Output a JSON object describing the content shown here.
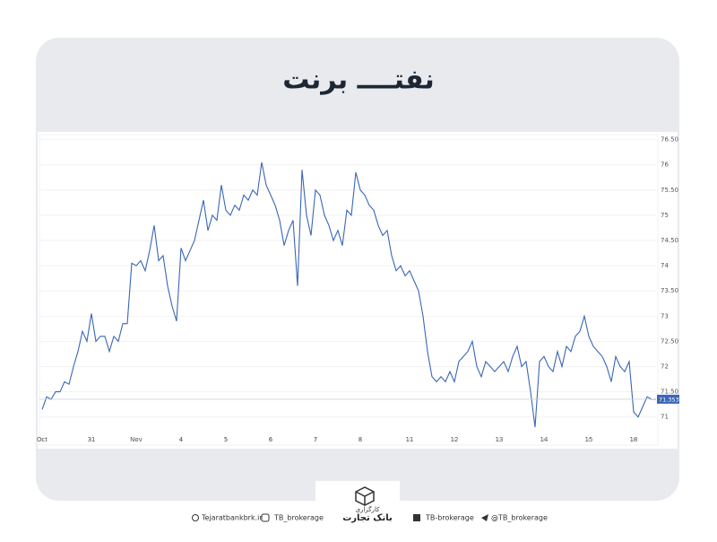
{
  "chart_data": {
    "type": "line",
    "title": "نفتــــ برنت",
    "series": [
      {
        "name": "Brent",
        "color": "#3a66b7",
        "values": [
          71.15,
          71.4,
          71.35,
          71.5,
          71.5,
          71.7,
          71.65,
          72.0,
          72.3,
          72.7,
          72.5,
          73.05,
          72.5,
          72.6,
          72.6,
          72.3,
          72.6,
          72.5,
          72.85,
          72.85,
          74.05,
          74.0,
          74.1,
          73.9,
          74.3,
          74.8,
          74.1,
          74.2,
          73.6,
          73.2,
          72.9,
          74.35,
          74.1,
          74.3,
          74.5,
          74.9,
          75.3,
          74.7,
          75.0,
          74.9,
          75.6,
          75.1,
          75.0,
          75.2,
          75.1,
          75.4,
          75.3,
          75.5,
          75.4,
          76.05,
          75.6,
          75.4,
          75.2,
          74.9,
          74.4,
          74.7,
          74.9,
          73.6,
          75.9,
          75.0,
          74.6,
          75.5,
          75.4,
          75.0,
          74.8,
          74.5,
          74.7,
          74.4,
          75.1,
          75.0,
          75.85,
          75.5,
          75.4,
          75.2,
          75.1,
          74.8,
          74.6,
          74.7,
          74.2,
          73.9,
          74.0,
          73.8,
          73.9,
          73.7,
          73.5,
          73.0,
          72.3,
          71.8,
          71.7,
          71.8,
          71.7,
          71.9,
          71.7,
          72.1,
          72.2,
          72.3,
          72.5,
          72.0,
          71.8,
          72.1,
          72.0,
          71.9,
          72.0,
          72.1,
          71.9,
          72.2,
          72.4,
          72.0,
          72.1,
          71.5,
          70.8,
          72.1,
          72.2,
          72.0,
          71.9,
          72.3,
          72.0,
          72.4,
          72.3,
          72.6,
          72.7,
          73.0,
          72.6,
          72.4,
          72.3,
          72.2,
          72.0,
          71.7,
          72.2,
          72.0,
          71.9,
          72.1,
          71.1,
          71.0,
          71.2,
          71.4,
          71.35,
          71.353
        ]
      }
    ],
    "last_value": 71.353,
    "xlim": [
      0,
      137
    ],
    "xticks": [
      {
        "value": 0,
        "label": "Oct"
      },
      {
        "value": 11,
        "label": "31"
      },
      {
        "value": 21,
        "label": "Nov"
      },
      {
        "value": 31,
        "label": "4"
      },
      {
        "value": 41,
        "label": "5"
      },
      {
        "value": 51,
        "label": "6"
      },
      {
        "value": 61,
        "label": "7"
      },
      {
        "value": 71,
        "label": "8"
      },
      {
        "value": 82,
        "label": "11"
      },
      {
        "value": 92,
        "label": "12"
      },
      {
        "value": 102,
        "label": "13"
      },
      {
        "value": 112,
        "label": "14"
      },
      {
        "value": 122,
        "label": "15"
      },
      {
        "value": 132,
        "label": "18"
      }
    ],
    "ylim": [
      70.55,
      76.6
    ],
    "yticks": [
      71,
      {
        "value": 71.5,
        "label": "71.50"
      },
      72,
      {
        "value": 72.5,
        "label": "72.50"
      },
      73,
      {
        "value": 73.5,
        "label": "73.50"
      },
      74,
      {
        "value": 74.5,
        "label": "74.50"
      },
      75,
      {
        "value": 75.5,
        "label": "75.50"
      },
      76,
      {
        "value": 76.5,
        "label": "76.50"
      }
    ],
    "grid": true
  },
  "footer": {
    "logo_top": "کارگزاری",
    "logo_main": "بانک تجارت",
    "website": "Tejaratbankbrk.ir",
    "instagram": "TB_brokerage",
    "linkedin": "TB-brokerage",
    "telegram": "@TB_brokerage"
  }
}
